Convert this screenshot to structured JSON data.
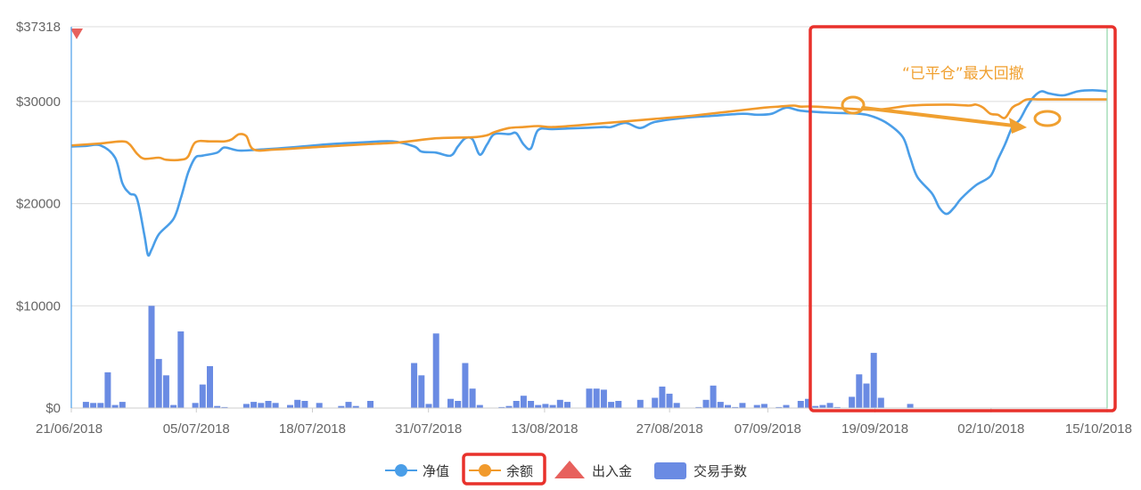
{
  "chart_data": {
    "type": "line",
    "y_axis": {
      "ticks": [
        "$0",
        "$10000",
        "$20000",
        "$30000",
        "$37318"
      ],
      "tick_values": [
        0,
        10000,
        20000,
        30000,
        37318
      ],
      "ylim": [
        0,
        37318
      ]
    },
    "x_axis": {
      "ticks": [
        "21/06/2018",
        "05/07/2018",
        "18/07/2018",
        "31/07/2018",
        "13/08/2018",
        "27/08/2018",
        "07/09/2018",
        "19/09/2018",
        "02/10/2018",
        "15/10/2018"
      ],
      "tick_index": [
        0,
        14,
        27,
        40,
        53,
        67,
        78,
        90,
        103,
        116
      ],
      "n_days": 117
    },
    "series": [
      {
        "name": "净值",
        "type": "line",
        "color": "#4a9ee8",
        "points": [
          [
            0,
            25600
          ],
          [
            2,
            25650
          ],
          [
            4,
            25700
          ],
          [
            6,
            24500
          ],
          [
            7,
            22000
          ],
          [
            8,
            21000
          ],
          [
            9,
            20500
          ],
          [
            10,
            17000
          ],
          [
            10.5,
            15000
          ],
          [
            11,
            15500
          ],
          [
            12,
            17000
          ],
          [
            14,
            18500
          ],
          [
            15,
            20500
          ],
          [
            16,
            23000
          ],
          [
            17,
            24500
          ],
          [
            18,
            24700
          ],
          [
            20,
            25000
          ],
          [
            21,
            25500
          ],
          [
            23,
            25200
          ],
          [
            26,
            25300
          ],
          [
            30,
            25500
          ],
          [
            35,
            25800
          ],
          [
            40,
            26000
          ],
          [
            44,
            26100
          ],
          [
            47,
            25600
          ],
          [
            48,
            25100
          ],
          [
            50,
            25000
          ],
          [
            52,
            24700
          ],
          [
            53,
            25600
          ],
          [
            54,
            26400
          ],
          [
            55,
            26300
          ],
          [
            56,
            24800
          ],
          [
            57,
            25800
          ],
          [
            58,
            26800
          ],
          [
            60,
            26800
          ],
          [
            61,
            26900
          ],
          [
            62,
            25800
          ],
          [
            63,
            25400
          ],
          [
            64,
            27200
          ],
          [
            66,
            27300
          ],
          [
            70,
            27400
          ],
          [
            73,
            27500
          ],
          [
            74,
            27500
          ],
          [
            76,
            27900
          ],
          [
            78,
            27400
          ],
          [
            80,
            28000
          ],
          [
            84,
            28400
          ],
          [
            88,
            28600
          ],
          [
            92,
            28800
          ],
          [
            94,
            28700
          ],
          [
            96,
            28800
          ],
          [
            98,
            29400
          ],
          [
            100,
            29100
          ],
          [
            104,
            28900
          ],
          [
            108,
            28800
          ],
          [
            110,
            28500
          ],
          [
            112,
            27800
          ],
          [
            114,
            26500
          ],
          [
            115,
            24500
          ],
          [
            116,
            22600
          ],
          [
            118,
            21000
          ],
          [
            119,
            19600
          ],
          [
            120,
            19000
          ],
          [
            121,
            19600
          ],
          [
            122,
            20500
          ],
          [
            124,
            21800
          ],
          [
            126,
            22700
          ],
          [
            127,
            24300
          ],
          [
            128,
            25800
          ],
          [
            129,
            27500
          ],
          [
            130,
            28200
          ],
          [
            131,
            29500
          ],
          [
            132,
            30500
          ],
          [
            133,
            31000
          ],
          [
            134,
            30800
          ],
          [
            136,
            30600
          ],
          [
            138,
            31000
          ],
          [
            140,
            31100
          ],
          [
            142,
            31000
          ]
        ]
      },
      {
        "name": "余额",
        "type": "line",
        "color": "#f19a2c",
        "points": [
          [
            0,
            25700
          ],
          [
            4,
            25900
          ],
          [
            7,
            26100
          ],
          [
            8,
            25800
          ],
          [
            9,
            24900
          ],
          [
            10,
            24400
          ],
          [
            12,
            24500
          ],
          [
            13,
            24300
          ],
          [
            15,
            24300
          ],
          [
            16,
            24600
          ],
          [
            17,
            26000
          ],
          [
            19,
            26100
          ],
          [
            21,
            26100
          ],
          [
            22,
            26300
          ],
          [
            23,
            26800
          ],
          [
            24,
            26600
          ],
          [
            25,
            25300
          ],
          [
            28,
            25300
          ],
          [
            35,
            25600
          ],
          [
            40,
            25800
          ],
          [
            45,
            26000
          ],
          [
            50,
            26400
          ],
          [
            55,
            26500
          ],
          [
            57,
            26700
          ],
          [
            58,
            27000
          ],
          [
            60,
            27400
          ],
          [
            62,
            27500
          ],
          [
            64,
            27600
          ],
          [
            66,
            27500
          ],
          [
            70,
            27700
          ],
          [
            75,
            28000
          ],
          [
            80,
            28300
          ],
          [
            85,
            28600
          ],
          [
            90,
            29000
          ],
          [
            95,
            29400
          ],
          [
            97,
            29500
          ],
          [
            99,
            29600
          ],
          [
            100,
            29500
          ],
          [
            102,
            29500
          ],
          [
            110,
            29200
          ],
          [
            115,
            29600
          ],
          [
            120,
            29700
          ],
          [
            123,
            29600
          ],
          [
            124,
            29700
          ],
          [
            125,
            29400
          ],
          [
            126,
            28800
          ],
          [
            127,
            28700
          ],
          [
            128,
            28400
          ],
          [
            129,
            29400
          ],
          [
            130,
            29800
          ],
          [
            131,
            30200
          ],
          [
            133,
            30200
          ],
          [
            136,
            30200
          ],
          [
            142,
            30200
          ]
        ]
      },
      {
        "name": "出入金",
        "type": "marker",
        "color": "#e7615d",
        "points": [
          [
            0,
            37318
          ]
        ]
      },
      {
        "name": "交易手数",
        "type": "bar",
        "color": "#6a8be3",
        "points": [
          [
            2,
            600
          ],
          [
            3,
            500
          ],
          [
            4,
            500
          ],
          [
            5,
            3500
          ],
          [
            6,
            300
          ],
          [
            7,
            600
          ],
          [
            11,
            10000
          ],
          [
            12,
            4800
          ],
          [
            13,
            3200
          ],
          [
            14,
            300
          ],
          [
            15,
            7500
          ],
          [
            17,
            500
          ],
          [
            18,
            2300
          ],
          [
            19,
            4100
          ],
          [
            20,
            200
          ],
          [
            21,
            100
          ],
          [
            24,
            400
          ],
          [
            25,
            600
          ],
          [
            26,
            500
          ],
          [
            27,
            700
          ],
          [
            28,
            500
          ],
          [
            30,
            300
          ],
          [
            31,
            800
          ],
          [
            32,
            700
          ],
          [
            34,
            500
          ],
          [
            37,
            200
          ],
          [
            38,
            600
          ],
          [
            39,
            200
          ],
          [
            41,
            700
          ],
          [
            47,
            4400
          ],
          [
            48,
            3200
          ],
          [
            49,
            400
          ],
          [
            50,
            7300
          ],
          [
            52,
            900
          ],
          [
            53,
            700
          ],
          [
            54,
            4400
          ],
          [
            55,
            1900
          ],
          [
            56,
            300
          ],
          [
            59,
            100
          ],
          [
            60,
            200
          ],
          [
            61,
            700
          ],
          [
            62,
            1200
          ],
          [
            63,
            700
          ],
          [
            64,
            300
          ],
          [
            65,
            400
          ],
          [
            66,
            300
          ],
          [
            67,
            800
          ],
          [
            68,
            600
          ],
          [
            71,
            1900
          ],
          [
            72,
            1900
          ],
          [
            73,
            1800
          ],
          [
            74,
            600
          ],
          [
            75,
            700
          ],
          [
            78,
            800
          ],
          [
            80,
            1000
          ],
          [
            81,
            2100
          ],
          [
            82,
            1400
          ],
          [
            83,
            500
          ],
          [
            86,
            100
          ],
          [
            87,
            800
          ],
          [
            88,
            2200
          ],
          [
            89,
            600
          ],
          [
            90,
            300
          ],
          [
            91,
            100
          ],
          [
            92,
            500
          ],
          [
            94,
            300
          ],
          [
            95,
            400
          ],
          [
            97,
            100
          ],
          [
            98,
            300
          ],
          [
            100,
            700
          ],
          [
            101,
            900
          ],
          [
            102,
            200
          ],
          [
            103,
            300
          ],
          [
            104,
            500
          ],
          [
            105,
            100
          ],
          [
            107,
            1100
          ],
          [
            108,
            3300
          ],
          [
            109,
            2400
          ],
          [
            110,
            5400
          ],
          [
            111,
            1000
          ],
          [
            115,
            400
          ]
        ]
      }
    ],
    "legend": [
      "净值",
      "余额",
      "出入金",
      "交易手数"
    ],
    "legend_position": "bottom",
    "grid": true,
    "annotation": "“已平仓”最大回撤"
  }
}
